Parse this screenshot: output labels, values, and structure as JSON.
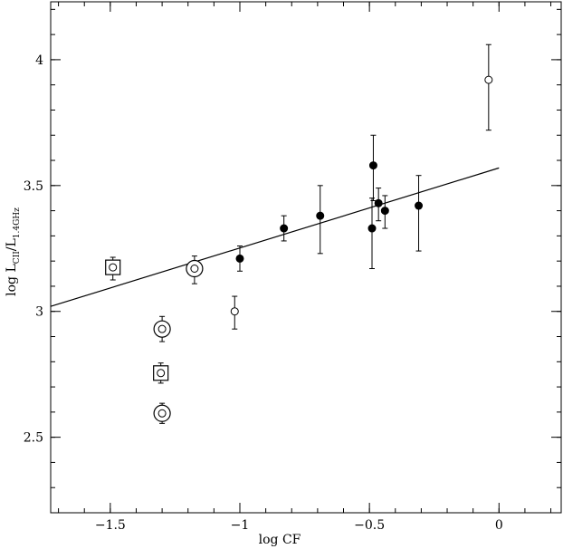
{
  "chart_data": {
    "type": "scatter",
    "xlabel": "log CF",
    "ylabel": "log L",
    "ylabel_sub": "CII",
    "ylabel_rest": "/L",
    "ylabel_sub2": "1.4GHz",
    "xlim": [
      -1.73,
      0.24
    ],
    "ylim": [
      2.2,
      4.23
    ],
    "x_ticks": [
      -1.5,
      -1,
      -0.5,
      0
    ],
    "x_tick_labels": [
      "−1.5",
      "−1",
      "−0.5",
      "0"
    ],
    "y_ticks": [
      2.5,
      3,
      3.5,
      4
    ],
    "y_tick_labels": [
      "2.5",
      "3",
      "3.5",
      "4"
    ],
    "x_minor_step": 0.1,
    "y_minor_step": 0.1,
    "grid": false,
    "fit_line": {
      "x": [
        -1.73,
        0.0
      ],
      "y": [
        3.02,
        3.57
      ]
    },
    "series": [
      {
        "marker": "filled-circle",
        "points": [
          {
            "x": -1.0,
            "y": 3.21,
            "err_lo": 0.05,
            "err_hi": 0.05
          },
          {
            "x": -0.83,
            "y": 3.33,
            "err_lo": 0.05,
            "err_hi": 0.05
          },
          {
            "x": -0.69,
            "y": 3.38,
            "err_lo": 0.15,
            "err_hi": 0.12
          },
          {
            "x": -0.49,
            "y": 3.33,
            "err_lo": 0.16,
            "err_hi": 0.12
          },
          {
            "x": -0.485,
            "y": 3.58,
            "err_lo": 0.14,
            "err_hi": 0.12
          },
          {
            "x": -0.465,
            "y": 3.43,
            "err_lo": 0.07,
            "err_hi": 0.06
          },
          {
            "x": -0.44,
            "y": 3.4,
            "err_lo": 0.07,
            "err_hi": 0.06
          },
          {
            "x": -0.31,
            "y": 3.42,
            "err_lo": 0.18,
            "err_hi": 0.12
          }
        ]
      },
      {
        "marker": "open-circle",
        "points": [
          {
            "x": -1.02,
            "y": 3.0,
            "err_lo": 0.07,
            "err_hi": 0.06
          },
          {
            "x": -0.04,
            "y": 3.92,
            "err_lo": 0.2,
            "err_hi": 0.14
          }
        ]
      },
      {
        "marker": "circle-in-circle",
        "points": [
          {
            "x": -1.3,
            "y": 2.93,
            "err_lo": 0.05,
            "err_hi": 0.05
          },
          {
            "x": -1.3,
            "y": 2.595,
            "err_lo": 0.04,
            "err_hi": 0.04
          },
          {
            "x": -1.175,
            "y": 3.17,
            "err_lo": 0.06,
            "err_hi": 0.05
          }
        ]
      },
      {
        "marker": "circle-in-square",
        "points": [
          {
            "x": -1.49,
            "y": 3.175,
            "err_lo": 0.05,
            "err_hi": 0.04
          },
          {
            "x": -1.305,
            "y": 2.755,
            "err_lo": 0.04,
            "err_hi": 0.04
          }
        ]
      }
    ]
  }
}
